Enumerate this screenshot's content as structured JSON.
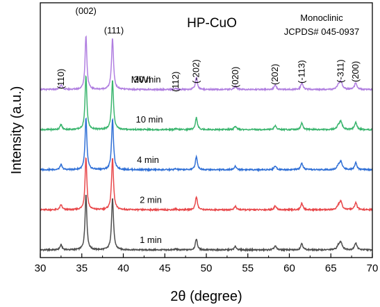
{
  "chart_data": {
    "type": "line",
    "title": "HP-CuO",
    "phase_note": [
      "Monoclinic",
      "JCPDS# 045-0937"
    ],
    "xlabel": "2θ (degree)",
    "ylabel": "Intensity (a.u.)",
    "xlim": [
      30,
      70
    ],
    "xticks": [
      "30",
      "35",
      "40",
      "45",
      "50",
      "55",
      "60",
      "65",
      "70"
    ],
    "legend_title": "MWI",
    "legend_placement": "series labels above each curve",
    "grid": false,
    "peaks": [
      {
        "label": "(110)",
        "x": 32.5
      },
      {
        "label": "(002)",
        "x": 35.5
      },
      {
        "label": "(111)",
        "x": 38.7
      },
      {
        "label": "(112)",
        "x": 46.3
      },
      {
        "label": "(-202)",
        "x": 48.8
      },
      {
        "label": "(020)",
        "x": 53.5
      },
      {
        "label": "(202)",
        "x": 58.3
      },
      {
        "label": "(-113)",
        "x": 61.5
      },
      {
        "label": "(-311)",
        "x": 66.2
      },
      {
        "label": "(200)",
        "x": 68.0
      }
    ],
    "series": [
      {
        "name": "1 min",
        "color": "#4d4d4d",
        "offset": 0.0,
        "intensities": [
          0.09,
          1.0,
          0.93,
          0.015,
          0.2,
          0.06,
          0.07,
          0.12,
          0.14,
          0.13
        ]
      },
      {
        "name": "2 min",
        "color": "#e8474a",
        "offset": 0.72,
        "intensities": [
          0.09,
          0.95,
          0.93,
          0.015,
          0.24,
          0.06,
          0.07,
          0.12,
          0.14,
          0.13
        ]
      },
      {
        "name": "4 min",
        "color": "#2f6fd6",
        "offset": 1.44,
        "intensities": [
          0.09,
          0.93,
          0.91,
          0.015,
          0.24,
          0.06,
          0.07,
          0.12,
          0.14,
          0.13
        ]
      },
      {
        "name": "10 min",
        "color": "#3ab56e",
        "offset": 2.16,
        "intensities": [
          0.09,
          0.97,
          0.88,
          0.015,
          0.22,
          0.06,
          0.07,
          0.12,
          0.14,
          0.13
        ]
      },
      {
        "name": "30 min",
        "color": "#b07ee0",
        "offset": 2.88,
        "intensities": [
          0.09,
          0.97,
          0.92,
          0.015,
          0.22,
          0.06,
          0.07,
          0.12,
          0.14,
          0.13
        ]
      }
    ]
  }
}
